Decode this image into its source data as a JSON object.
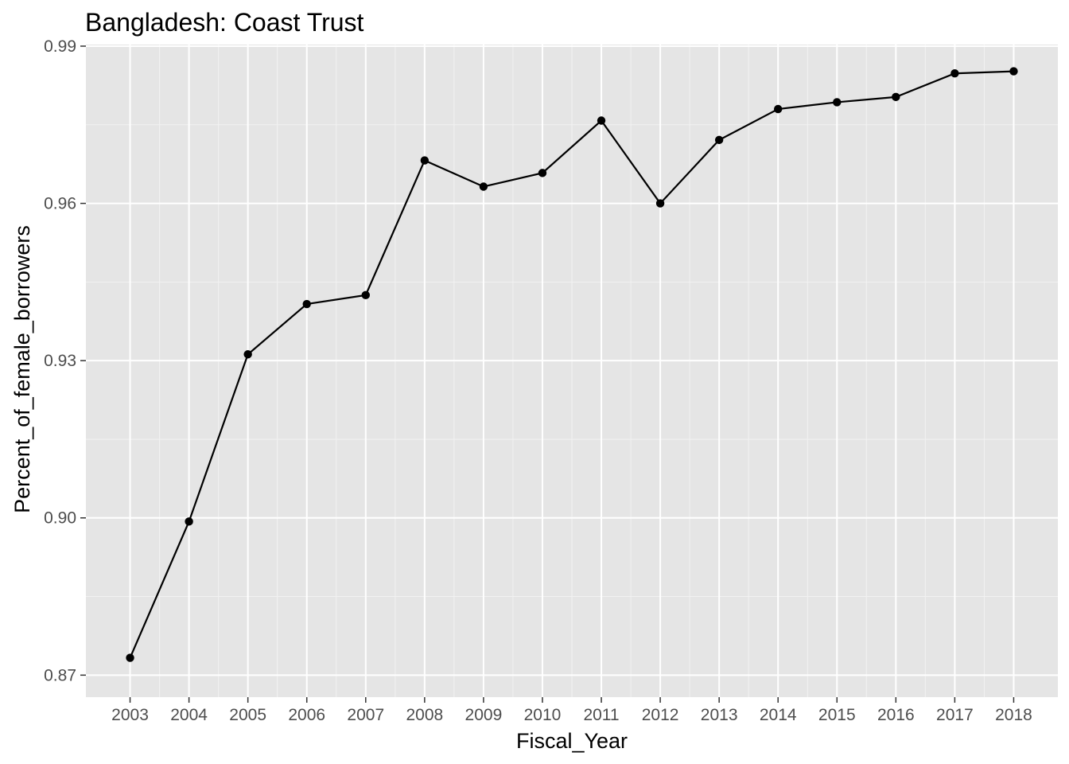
{
  "chart_data": {
    "type": "line",
    "title": "Bangladesh:  Coast Trust",
    "xlabel": "Fiscal_Year",
    "ylabel": "Percent_of_female_borrowers",
    "x": [
      2003,
      2004,
      2005,
      2006,
      2007,
      2008,
      2009,
      2010,
      2011,
      2012,
      2013,
      2014,
      2015,
      2016,
      2017,
      2018
    ],
    "series": [
      {
        "values": [
          0.8733,
          0.8993,
          0.9312,
          0.9408,
          0.9425,
          0.9682,
          0.9632,
          0.9658,
          0.9758,
          0.96,
          0.9721,
          0.978,
          0.9793,
          0.9803,
          0.9848,
          0.9852
        ]
      }
    ],
    "ylim": [
      0.8658,
      0.9903
    ],
    "yticks": [
      "0.87",
      "0.90",
      "0.93",
      "0.96",
      "0.99"
    ],
    "xticks": [
      "2003",
      "2004",
      "2005",
      "2006",
      "2007",
      "2008",
      "2009",
      "2010",
      "2011",
      "2012",
      "2013",
      "2014",
      "2015",
      "2016",
      "2017",
      "2018"
    ],
    "grid": true,
    "background": "#e5e5e5",
    "line_color": "#000000"
  }
}
